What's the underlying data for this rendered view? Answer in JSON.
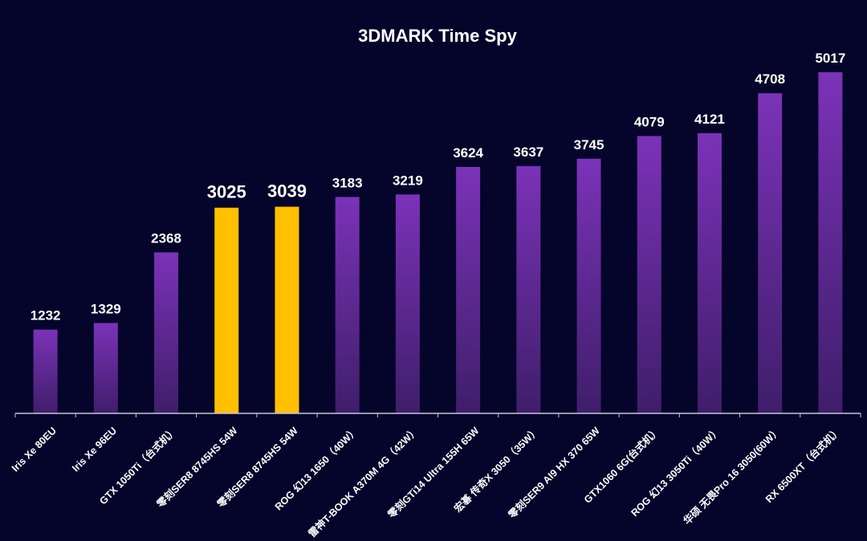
{
  "chart_data": {
    "type": "bar",
    "title": "3DMARK Time Spy",
    "xlabel": "",
    "ylabel": "",
    "ylim": [
      0,
      5017
    ],
    "grid": false,
    "legend": "none",
    "categories": [
      "Iris Xe 80EU",
      "Iris Xe 96EU",
      "GTX 1050Ti（台式机）",
      "零刻SER8 8745HS 54W",
      "零刻SER8 8745HS 54W",
      "ROG 幻13 1650（40W）",
      "雷神T-BOOK A370M 4G（42W）",
      "零刻GTi14 Ultra 155H 65W",
      "宏碁 传奇X 3050（35W）",
      "零刻SER9 AI9 HX 370 65W",
      "GTX1060 6G(台式机）",
      "ROG 幻13 3050Ti（40W）",
      "华硕 无畏Pro 16 3050(60W）",
      "RX 6500XT（台式机）"
    ],
    "values": [
      1232,
      1329,
      2368,
      3025,
      3039,
      3183,
      3219,
      3624,
      3637,
      3745,
      4079,
      4121,
      4708,
      5017
    ],
    "value_labels": [
      "1232",
      "1329",
      "2368",
      "3025",
      "3039",
      "3183",
      "3219",
      "3624",
      "3637",
      "3745",
      "4079",
      "4121",
      "4708",
      "5017"
    ],
    "highlighted": [
      false,
      false,
      false,
      true,
      true,
      false,
      false,
      false,
      false,
      false,
      false,
      false,
      false,
      false
    ],
    "colors": {
      "background": "#05042a",
      "bar_top": "#7b32b8",
      "bar_bottom": "#3f1e6a",
      "highlight": "#ffc000",
      "axis": "#c8c4e0",
      "text": "#ffffff"
    }
  }
}
